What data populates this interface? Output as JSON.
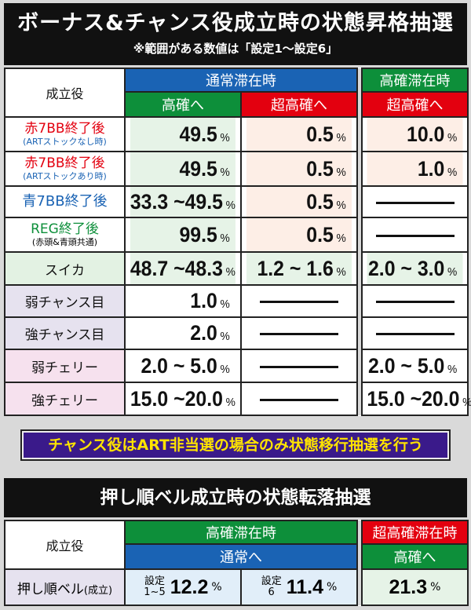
{
  "title": "ボーナス&チャンス役成立時の状態昇格抽選",
  "subtitle": "※範囲がある数値は「設定1～設定6」",
  "table1": {
    "role_header": "成立役",
    "normal_stay": "通常滞在時",
    "high_stay": "高確滞在時",
    "to_high": "高確へ",
    "to_super": "超高確へ",
    "to_super2": "超高確へ",
    "unit": "%",
    "rows": [
      {
        "name": "赤7BB終了後",
        "sub": "(ARTストックなし時)",
        "a": "49.5",
        "b": "0.5",
        "c": "10.0"
      },
      {
        "name": "赤7BB終了後",
        "sub": "(ARTストックあり時)",
        "a": "49.5",
        "b": "0.5",
        "c": "1.0"
      },
      {
        "name": "青7BB終了後",
        "a": "33.3 ~49.5",
        "b": "0.5"
      },
      {
        "name": "REG終了後",
        "sub": "(赤頭&青頭共通)",
        "a": "99.5",
        "b": "0.5"
      },
      {
        "name": "スイカ",
        "a": "48.7 ~48.3",
        "b": "1.2 ~ 1.6",
        "c": "2.0 ~ 3.0"
      },
      {
        "name": "弱チャンス目",
        "a": "1.0"
      },
      {
        "name": "強チャンス目",
        "a": "2.0"
      },
      {
        "name": "弱チェリー",
        "a": "2.0 ~ 5.0",
        "c": "2.0 ~ 5.0"
      },
      {
        "name": "強チェリー",
        "a": "15.0 ~20.0",
        "c": "15.0 ~20.0"
      }
    ]
  },
  "banner": "チャンス役はART非当選の場合のみ状態移行抽選を行う",
  "title2": "押し順ベル成立時の状態転落抽選",
  "table2": {
    "role_header": "成立役",
    "high_stay": "高確滞在時",
    "super_stay": "超高確滞在時",
    "to_normal": "通常へ",
    "to_high": "高確へ",
    "row_name": "押し順ベル",
    "row_suffix": "(成立)",
    "set_a_top": "設定",
    "set_a_bottom": "1~5",
    "val_a": "12.2",
    "set_b_top": "設定",
    "set_b_bottom": "6",
    "val_b": "11.4",
    "val_c": "21.3",
    "unit": "%"
  },
  "colors": {
    "blue": "#1a63b4",
    "green": "#0d8f3a",
    "red": "#e3000f",
    "banner": "#3a1a8a",
    "banner_text": "#ffe400"
  }
}
